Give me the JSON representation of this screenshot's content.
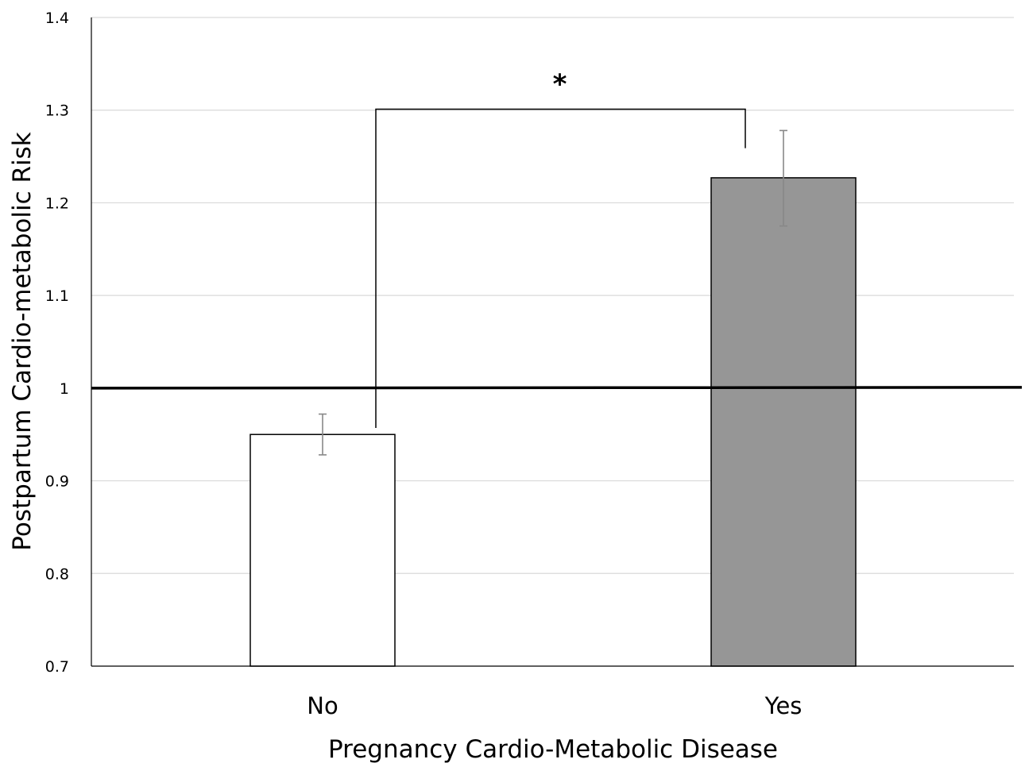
{
  "chart_data": {
    "type": "bar",
    "categories": [
      "No",
      "Yes"
    ],
    "values": [
      0.95,
      1.227
    ],
    "error_bars": [
      {
        "low": 0.928,
        "high": 0.972
      },
      {
        "low": 1.175,
        "high": 1.278
      }
    ],
    "bar_colors": [
      "#ffffff",
      "#969696"
    ],
    "bar_edge_color": "#000000",
    "error_bar_color": "#888888",
    "title": "",
    "xlabel": "Pregnancy Cardio-Metabolic Disease",
    "ylabel": "Postpartum Cardio-metabolic Risk",
    "ylim": [
      0.7,
      1.4
    ],
    "yticks": [
      0.7,
      0.8,
      0.9,
      1.0,
      1.1,
      1.2,
      1.3,
      1.4
    ],
    "ytick_labels": [
      "0.7",
      "0.8",
      "0.9",
      "1",
      "1.1",
      "1.2",
      "1.3",
      "1.4"
    ],
    "reference_line": {
      "y": 1.0,
      "color": "#000000"
    },
    "grid": true,
    "grid_color": "#d9d9d9",
    "legend": "none",
    "significance": {
      "label": "*",
      "between": [
        "No",
        "Yes"
      ],
      "bracket_y": 1.301,
      "left_end": 0.957,
      "right_end": 1.259
    }
  }
}
